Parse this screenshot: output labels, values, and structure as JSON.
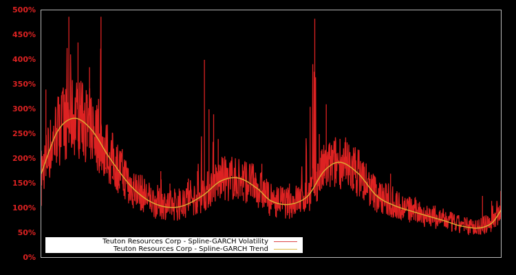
{
  "chart_data": {
    "type": "line",
    "title": "",
    "xlabel": "",
    "ylabel": "",
    "ylim": [
      0,
      500
    ],
    "yticks": [
      "0%",
      "50%",
      "100%",
      "150%",
      "200%",
      "250%",
      "300%",
      "350%",
      "400%",
      "450%",
      "500%"
    ],
    "grid": false,
    "legend_position": "lower left",
    "background": "#000000",
    "series": [
      {
        "name": "Teuton Resources Corp - Spline-GARCH Volatility",
        "color": "#dd2222",
        "style": "noisy",
        "note": "x is fraction of plot width (0..1), values in %",
        "x": [
          0.0,
          0.01,
          0.02,
          0.03,
          0.04,
          0.05,
          0.06,
          0.07,
          0.075,
          0.08,
          0.09,
          0.1,
          0.105,
          0.11,
          0.12,
          0.13,
          0.14,
          0.15,
          0.155,
          0.16,
          0.17,
          0.18,
          0.19,
          0.2,
          0.22,
          0.24,
          0.26,
          0.27,
          0.28,
          0.3,
          0.32,
          0.34,
          0.355,
          0.365,
          0.375,
          0.385,
          0.4,
          0.42,
          0.44,
          0.46,
          0.48,
          0.5,
          0.52,
          0.54,
          0.56,
          0.585,
          0.595,
          0.605,
          0.62,
          0.64,
          0.66,
          0.68,
          0.7,
          0.72,
          0.74,
          0.76,
          0.78,
          0.8,
          0.82,
          0.84,
          0.86,
          0.88,
          0.9,
          0.92,
          0.94,
          0.96,
          0.98,
          1.0
        ],
        "values": [
          105,
          340,
          200,
          240,
          310,
          330,
          487,
          290,
          260,
          435,
          350,
          330,
          385,
          220,
          200,
          487,
          180,
          175,
          160,
          150,
          140,
          125,
          110,
          100,
          100,
          95,
          175,
          110,
          150,
          140,
          160,
          175,
          400,
          300,
          290,
          240,
          150,
          125,
          115,
          185,
          190,
          130,
          110,
          150,
          140,
          305,
          483,
          250,
          310,
          200,
          160,
          140,
          120,
          140,
          110,
          170,
          100,
          90,
          110,
          100,
          75,
          80,
          60,
          70,
          65,
          125,
          115,
          135
        ]
      },
      {
        "name": "Teuton Resources Corp - Spline-GARCH Trend",
        "color": "#ddaa33",
        "style": "smooth",
        "x": [
          0.0,
          0.035,
          0.072,
          0.11,
          0.15,
          0.2,
          0.25,
          0.3,
          0.35,
          0.39,
          0.43,
          0.47,
          0.5,
          0.54,
          0.58,
          0.615,
          0.65,
          0.69,
          0.73,
          0.77,
          0.81,
          0.85,
          0.88,
          0.91,
          0.95,
          0.98,
          1.0
        ],
        "values": [
          170,
          255,
          282,
          258,
          200,
          140,
          108,
          103,
          125,
          155,
          161,
          140,
          115,
          108,
          125,
          175,
          193,
          170,
          125,
          105,
          93,
          82,
          74,
          65,
          60,
          70,
          96
        ]
      }
    ]
  },
  "axis": {
    "ticks": [
      {
        "label": "500%",
        "value": 500
      },
      {
        "label": "450%",
        "value": 450
      },
      {
        "label": "400%",
        "value": 400
      },
      {
        "label": "350%",
        "value": 350
      },
      {
        "label": "300%",
        "value": 300
      },
      {
        "label": "250%",
        "value": 250
      },
      {
        "label": "200%",
        "value": 200
      },
      {
        "label": "150%",
        "value": 150
      },
      {
        "label": "100%",
        "value": 100
      },
      {
        "label": "50%",
        "value": 50
      },
      {
        "label": "0%",
        "value": 0
      }
    ]
  },
  "legend": {
    "items": [
      {
        "label": "Teuton Resources Corp - Spline-GARCH Volatility",
        "color": "#dd2222"
      },
      {
        "label": "Teuton Resources Corp - Spline-GARCH Trend",
        "color": "#ddaa33"
      }
    ]
  },
  "colors": {
    "background": "#000000",
    "frame": "#bbbbbb",
    "tick_text": "#dd2222",
    "volatility": "#dd2222",
    "trend": "#ddaa33"
  }
}
